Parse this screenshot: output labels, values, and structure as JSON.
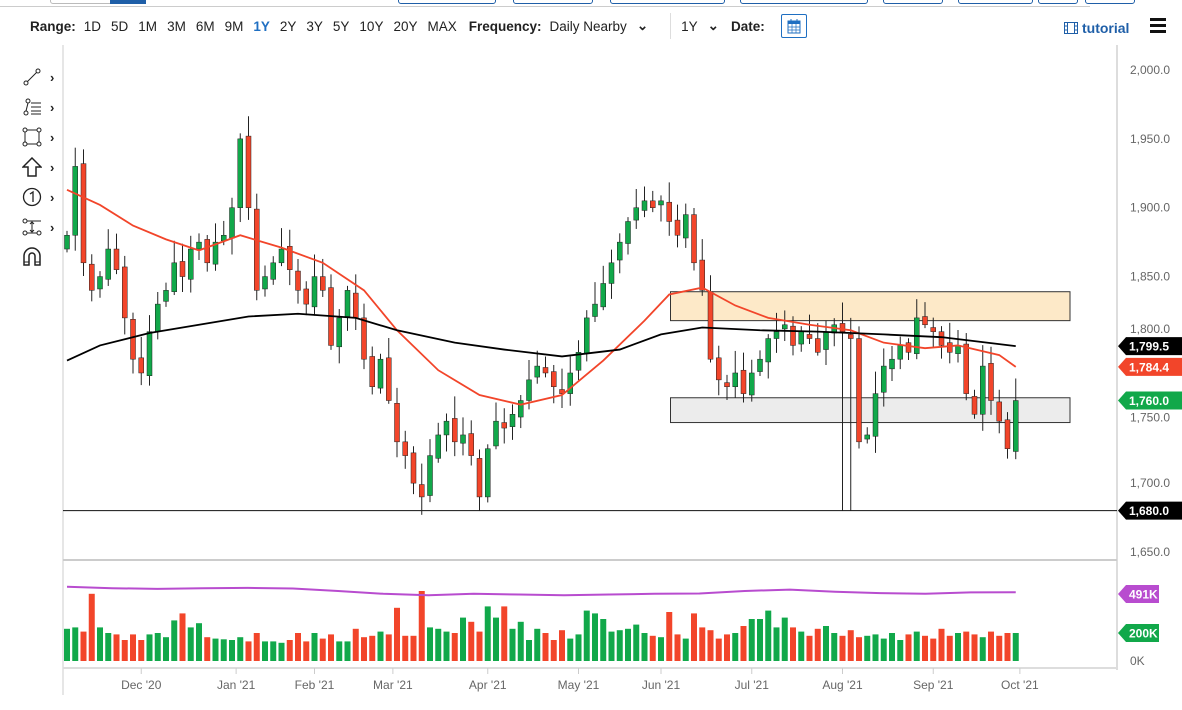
{
  "toolbar": {
    "range_label": "Range:",
    "ranges": [
      "1D",
      "5D",
      "1M",
      "3M",
      "6M",
      "9M",
      "1Y",
      "2Y",
      "3Y",
      "5Y",
      "10Y",
      "20Y",
      "MAX"
    ],
    "active_range": "1Y",
    "frequency_label": "Frequency:",
    "frequency_value": "Daily Nearby",
    "period_value": "1Y",
    "date_label": "Date:",
    "tutorial_label": "tutorial"
  },
  "drawing_tools": [
    "line-tool-icon",
    "fib-tool-icon",
    "rectangle-tool-icon",
    "arrow-tool-icon",
    "annotation-tool-icon",
    "measure-tool-icon",
    "magnet-icon"
  ],
  "colors": {
    "up": "#11a84a",
    "down": "#f2452a",
    "ma_short": "#f2452a",
    "ma_long": "#000000",
    "open_interest": "#b84ccf",
    "zone_resistance": "#fde9c8",
    "zone_support": "#ececec",
    "accent": "#1f6fc2"
  },
  "chart_data": {
    "type": "candlestick",
    "ylim": [
      1650,
      2000
    ],
    "y_ticks": [
      "2,000.0",
      "1,950.0",
      "1,900.0",
      "1,850.0",
      "1,800.0",
      "1,750.0",
      "1,700.0",
      "1,650.0"
    ],
    "y_tick_values": [
      2000,
      1950,
      1900,
      1850,
      1800,
      1750,
      1700,
      1650
    ],
    "x_ticks": [
      {
        "label": "Dec '20",
        "bar": 9
      },
      {
        "label": "Jan '21",
        "bar": 20.5
      },
      {
        "label": "Feb '21",
        "bar": 30
      },
      {
        "label": "Mar '21",
        "bar": 39.5
      },
      {
        "label": "Apr '21",
        "bar": 51
      },
      {
        "label": "May '21",
        "bar": 62
      },
      {
        "label": "Jun '21",
        "bar": 72
      },
      {
        "label": "Jul '21",
        "bar": 83
      },
      {
        "label": "Aug '21",
        "bar": 94
      },
      {
        "label": "Sep '21",
        "bar": 105
      },
      {
        "label": "Oct '21",
        "bar": 115.5
      }
    ],
    "closes": [
      1880,
      1930,
      1860,
      1840,
      1850,
      1870,
      1855,
      1820,
      1790,
      1780,
      1810,
      1830,
      1840,
      1860,
      1850,
      1870,
      1875,
      1860,
      1875,
      1880,
      1900,
      1950,
      1900,
      1840,
      1850,
      1860,
      1870,
      1855,
      1840,
      1830,
      1850,
      1840,
      1800,
      1820,
      1840,
      1820,
      1790,
      1770,
      1790,
      1760,
      1730,
      1720,
      1700,
      1690,
      1720,
      1735,
      1745,
      1730,
      1735,
      1720,
      1690,
      1725,
      1745,
      1740,
      1750,
      1760,
      1775,
      1785,
      1780,
      1770,
      1765,
      1780,
      1795,
      1820,
      1830,
      1845,
      1860,
      1875,
      1890,
      1900,
      1905,
      1900,
      1905,
      1890,
      1880,
      1895,
      1860,
      1840,
      1790,
      1775,
      1770,
      1780,
      1765,
      1780,
      1790,
      1805,
      1810,
      1815,
      1800,
      1810,
      1805,
      1795,
      1810,
      1815,
      1810,
      1805,
      1730,
      1735,
      1765,
      1785,
      1790,
      1800,
      1795,
      1820,
      1815,
      1810,
      1800,
      1795,
      1800,
      1765,
      1750,
      1785,
      1760,
      1745,
      1725,
      1760
    ],
    "volumes_k": [
      230,
      240,
      210,
      480,
      240,
      200,
      190,
      150,
      190,
      150,
      190,
      200,
      170,
      290,
      340,
      240,
      270,
      170,
      160,
      155,
      150,
      170,
      140,
      200,
      140,
      140,
      130,
      150,
      200,
      140,
      200,
      160,
      190,
      140,
      140,
      230,
      170,
      180,
      210,
      190,
      380,
      180,
      180,
      500,
      240,
      230,
      210,
      200,
      310,
      280,
      210,
      390,
      310,
      390,
      230,
      280,
      150,
      230,
      200,
      150,
      220,
      160,
      190,
      360,
      340,
      300,
      210,
      220,
      230,
      260,
      200,
      180,
      170,
      350,
      190,
      160,
      340,
      240,
      220,
      160,
      190,
      200,
      250,
      300,
      300,
      360,
      240,
      310,
      240,
      210,
      180,
      230,
      250,
      200,
      180,
      220,
      170,
      180,
      190,
      160,
      200,
      150,
      190,
      210,
      180,
      160,
      230,
      180,
      200,
      210,
      190,
      170,
      210,
      180,
      200,
      200
    ],
    "open_interest_k": [
      530,
      520,
      515,
      520,
      522,
      518,
      500,
      480,
      470,
      480,
      475,
      470,
      475,
      480,
      482,
      500,
      510,
      495,
      485,
      480,
      490,
      491
    ],
    "ma_short": [
      {
        "bar": 0,
        "v": 1913
      },
      {
        "bar": 4,
        "v": 1902
      },
      {
        "bar": 8,
        "v": 1887
      },
      {
        "bar": 12,
        "v": 1877
      },
      {
        "bar": 16,
        "v": 1869
      },
      {
        "bar": 21,
        "v": 1880
      },
      {
        "bar": 26,
        "v": 1871
      },
      {
        "bar": 31,
        "v": 1860
      },
      {
        "bar": 36,
        "v": 1840
      },
      {
        "bar": 40,
        "v": 1811
      },
      {
        "bar": 45,
        "v": 1782
      },
      {
        "bar": 50,
        "v": 1764
      },
      {
        "bar": 55,
        "v": 1757
      },
      {
        "bar": 60,
        "v": 1764
      },
      {
        "bar": 65,
        "v": 1789
      },
      {
        "bar": 70,
        "v": 1818
      },
      {
        "bar": 73,
        "v": 1837
      },
      {
        "bar": 77,
        "v": 1842
      },
      {
        "bar": 81,
        "v": 1829
      },
      {
        "bar": 85,
        "v": 1820
      },
      {
        "bar": 90,
        "v": 1815
      },
      {
        "bar": 95,
        "v": 1811
      },
      {
        "bar": 99,
        "v": 1802
      },
      {
        "bar": 104,
        "v": 1798
      },
      {
        "bar": 108,
        "v": 1800
      },
      {
        "bar": 113,
        "v": 1793
      },
      {
        "bar": 115,
        "v": 1784.4
      }
    ],
    "ma_long": [
      {
        "bar": 0,
        "v": 1789
      },
      {
        "bar": 4,
        "v": 1800
      },
      {
        "bar": 10,
        "v": 1809
      },
      {
        "bar": 16,
        "v": 1815
      },
      {
        "bar": 22,
        "v": 1821
      },
      {
        "bar": 28,
        "v": 1823
      },
      {
        "bar": 35,
        "v": 1820
      },
      {
        "bar": 40,
        "v": 1811
      },
      {
        "bar": 47,
        "v": 1802
      },
      {
        "bar": 53,
        "v": 1797
      },
      {
        "bar": 60,
        "v": 1792
      },
      {
        "bar": 67,
        "v": 1797
      },
      {
        "bar": 72,
        "v": 1808
      },
      {
        "bar": 77,
        "v": 1813
      },
      {
        "bar": 84,
        "v": 1811
      },
      {
        "bar": 91,
        "v": 1810
      },
      {
        "bar": 99,
        "v": 1808
      },
      {
        "bar": 106,
        "v": 1806
      },
      {
        "bar": 115,
        "v": 1799.5
      }
    ],
    "zones": [
      {
        "from_bar": 74,
        "top": 1839,
        "bottom": 1818,
        "type": "resistance"
      },
      {
        "from_bar": 74,
        "top": 1762,
        "bottom": 1744,
        "type": "support"
      }
    ],
    "hline": 1680,
    "price_tags": [
      {
        "label": "1,799.5",
        "v": 1799.5,
        "color": "#000000"
      },
      {
        "label": "1,784.4",
        "v": 1784.4,
        "color": "#f2452a"
      },
      {
        "label": "1,760.0",
        "v": 1760,
        "color": "#11a84a"
      },
      {
        "label": "1,680.0",
        "v": 1680,
        "color": "#000000"
      }
    ],
    "volume_ticks": [
      "0K"
    ],
    "volume_tags": [
      {
        "label": "491K",
        "v": 491,
        "color": "#b84ccf"
      },
      {
        "label": "200K",
        "v": 200,
        "color": "#11a84a"
      }
    ]
  }
}
